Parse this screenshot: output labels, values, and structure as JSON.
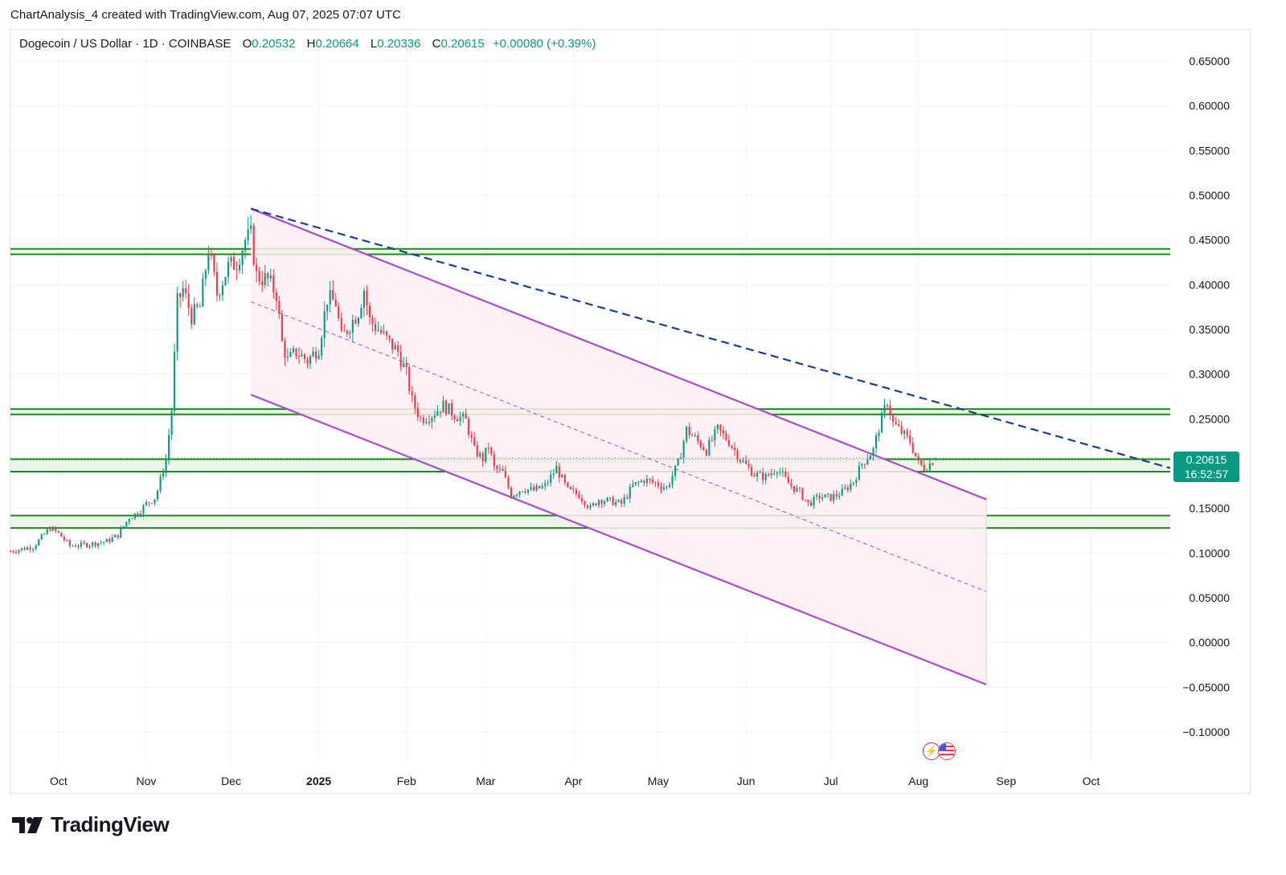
{
  "attribution": "ChartAnalysis_4 created with TradingView.com, Aug 07, 2025 07:07 UTC",
  "symbol": {
    "name": "Dogecoin / US Dollar · 1D · COINBASE",
    "o_label": "O",
    "o_value": "0.20532",
    "h_label": "H",
    "h_value": "0.20664",
    "l_label": "L",
    "l_value": "0.20336",
    "c_label": "C",
    "c_value": "0.20615",
    "change": "+0.00080 (+0.39%)"
  },
  "price_tag": {
    "price": "0.20615",
    "countdown": "16:52:57"
  },
  "logo_text": "TradingView",
  "icons": [
    "lightning-icon",
    "us-flag-icon",
    "tradingview-logo-icon"
  ],
  "colors": {
    "up": "#089981",
    "down": "#f23645",
    "support": "#1b8a1b",
    "support_fill": "#e8f5e4",
    "channel": "#a94bcc",
    "channel_fill": "#fdeef3",
    "trendline": "#1c3d8f"
  },
  "chart_data": {
    "type": "candlestick",
    "y_axis": {
      "ticks": [
        "0.65000",
        "0.60000",
        "0.55000",
        "0.50000",
        "0.45000",
        "0.40000",
        "0.35000",
        "0.30000",
        "0.25000",
        "0.20000",
        "0.15000",
        "0.10000",
        "0.05000",
        "0.00000",
        "−0.05000",
        "−0.10000"
      ],
      "range": [
        -0.135,
        0.685
      ]
    },
    "x_axis": {
      "ticks": [
        {
          "label": "Oct",
          "date": "2024-10-01"
        },
        {
          "label": "Nov",
          "date": "2024-11-01"
        },
        {
          "label": "Dec",
          "date": "2024-12-01"
        },
        {
          "label": "2025",
          "date": "2025-01-01",
          "bold": true
        },
        {
          "label": "Feb",
          "date": "2025-02-01"
        },
        {
          "label": "Mar",
          "date": "2025-03-01"
        },
        {
          "label": "Apr",
          "date": "2025-04-01"
        },
        {
          "label": "May",
          "date": "2025-05-01"
        },
        {
          "label": "Jun",
          "date": "2025-06-01"
        },
        {
          "label": "Jul",
          "date": "2025-07-01"
        },
        {
          "label": "Aug",
          "date": "2025-08-01"
        },
        {
          "label": "Sep",
          "date": "2025-09-01"
        },
        {
          "label": "Oct",
          "date": "2025-10-01"
        }
      ],
      "range": [
        "2024-09-14",
        "2025-10-29"
      ]
    },
    "price_path": [
      [
        "2024-09-14",
        0.102
      ],
      [
        "2024-09-22",
        0.107
      ],
      [
        "2024-09-28",
        0.128
      ],
      [
        "2024-10-01",
        0.122
      ],
      [
        "2024-10-05",
        0.108
      ],
      [
        "2024-10-12",
        0.11
      ],
      [
        "2024-10-18",
        0.113
      ],
      [
        "2024-10-22",
        0.12
      ],
      [
        "2024-10-26",
        0.14
      ],
      [
        "2024-10-29",
        0.145
      ],
      [
        "2024-11-01",
        0.155
      ],
      [
        "2024-11-04",
        0.162
      ],
      [
        "2024-11-05",
        0.17
      ],
      [
        "2024-11-08",
        0.205
      ],
      [
        "2024-11-10",
        0.26
      ],
      [
        "2024-11-12",
        0.38
      ],
      [
        "2024-11-14",
        0.395
      ],
      [
        "2024-11-17",
        0.365
      ],
      [
        "2024-11-20",
        0.375
      ],
      [
        "2024-11-23",
        0.44
      ],
      [
        "2024-11-26",
        0.39
      ],
      [
        "2024-11-30",
        0.42
      ],
      [
        "2024-12-03",
        0.425
      ],
      [
        "2024-12-06",
        0.45
      ],
      [
        "2024-12-08",
        0.455
      ],
      [
        "2024-12-10",
        0.41
      ],
      [
        "2024-12-14",
        0.405
      ],
      [
        "2024-12-17",
        0.39
      ],
      [
        "2024-12-19",
        0.335
      ],
      [
        "2024-12-21",
        0.315
      ],
      [
        "2024-12-24",
        0.325
      ],
      [
        "2024-12-28",
        0.315
      ],
      [
        "2025-01-01",
        0.33
      ],
      [
        "2025-01-04",
        0.385
      ],
      [
        "2025-01-07",
        0.38
      ],
      [
        "2025-01-09",
        0.34
      ],
      [
        "2025-01-12",
        0.355
      ],
      [
        "2025-01-15",
        0.37
      ],
      [
        "2025-01-17",
        0.395
      ],
      [
        "2025-01-19",
        0.36
      ],
      [
        "2025-01-22",
        0.35
      ],
      [
        "2025-01-26",
        0.335
      ],
      [
        "2025-01-29",
        0.325
      ],
      [
        "2025-02-01",
        0.3
      ],
      [
        "2025-02-03",
        0.27
      ],
      [
        "2025-02-06",
        0.25
      ],
      [
        "2025-02-10",
        0.255
      ],
      [
        "2025-02-14",
        0.265
      ],
      [
        "2025-02-18",
        0.255
      ],
      [
        "2025-02-22",
        0.248
      ],
      [
        "2025-02-25",
        0.215
      ],
      [
        "2025-02-28",
        0.205
      ],
      [
        "2025-03-02",
        0.22
      ],
      [
        "2025-03-04",
        0.195
      ],
      [
        "2025-03-07",
        0.19
      ],
      [
        "2025-03-10",
        0.165
      ],
      [
        "2025-03-14",
        0.172
      ],
      [
        "2025-03-18",
        0.17
      ],
      [
        "2025-03-22",
        0.175
      ],
      [
        "2025-03-26",
        0.195
      ],
      [
        "2025-03-30",
        0.17
      ],
      [
        "2025-04-03",
        0.165
      ],
      [
        "2025-04-07",
        0.15
      ],
      [
        "2025-04-10",
        0.16
      ],
      [
        "2025-04-14",
        0.158
      ],
      [
        "2025-04-18",
        0.155
      ],
      [
        "2025-04-22",
        0.175
      ],
      [
        "2025-04-26",
        0.182
      ],
      [
        "2025-04-30",
        0.178
      ],
      [
        "2025-05-04",
        0.173
      ],
      [
        "2025-05-08",
        0.2
      ],
      [
        "2025-05-11",
        0.238
      ],
      [
        "2025-05-14",
        0.228
      ],
      [
        "2025-05-18",
        0.215
      ],
      [
        "2025-05-22",
        0.238
      ],
      [
        "2025-05-26",
        0.225
      ],
      [
        "2025-05-30",
        0.205
      ],
      [
        "2025-06-04",
        0.188
      ],
      [
        "2025-06-08",
        0.185
      ],
      [
        "2025-06-12",
        0.195
      ],
      [
        "2025-06-16",
        0.178
      ],
      [
        "2025-06-20",
        0.168
      ],
      [
        "2025-06-23",
        0.155
      ],
      [
        "2025-06-27",
        0.163
      ],
      [
        "2025-07-01",
        0.162
      ],
      [
        "2025-07-05",
        0.168
      ],
      [
        "2025-07-09",
        0.18
      ],
      [
        "2025-07-12",
        0.2
      ],
      [
        "2025-07-16",
        0.215
      ],
      [
        "2025-07-18",
        0.24
      ],
      [
        "2025-07-21",
        0.27
      ],
      [
        "2025-07-23",
        0.245
      ],
      [
        "2025-07-26",
        0.235
      ],
      [
        "2025-07-29",
        0.225
      ],
      [
        "2025-08-01",
        0.2
      ],
      [
        "2025-08-03",
        0.195
      ],
      [
        "2025-08-05",
        0.2
      ],
      [
        "2025-08-07",
        0.20615
      ]
    ],
    "last_candle": {
      "date": "2025-08-07",
      "open": 0.20532,
      "high": 0.20664,
      "low": 0.20336,
      "close": 0.20615
    },
    "annotations": {
      "support_zones": [
        {
          "low": 0.434,
          "high": 0.44
        },
        {
          "low": 0.255,
          "high": 0.261
        },
        {
          "low": 0.191,
          "high": 0.205
        },
        {
          "low": 0.128,
          "high": 0.142
        }
      ],
      "descending_trendline": {
        "style": "dashed",
        "from": [
          "2024-12-08",
          0.485
        ],
        "to": [
          "2025-10-29",
          0.195
        ]
      },
      "descending_channel": {
        "upper": {
          "from": [
            "2024-12-08",
            0.485
          ],
          "to": [
            "2025-08-25",
            0.16
          ]
        },
        "lower": {
          "from": [
            "2024-12-08",
            0.277
          ],
          "to": [
            "2025-08-25",
            -0.047
          ]
        },
        "median": {
          "from": [
            "2024-12-08",
            0.381
          ],
          "to": [
            "2025-08-25",
            0.057
          ]
        }
      }
    }
  }
}
